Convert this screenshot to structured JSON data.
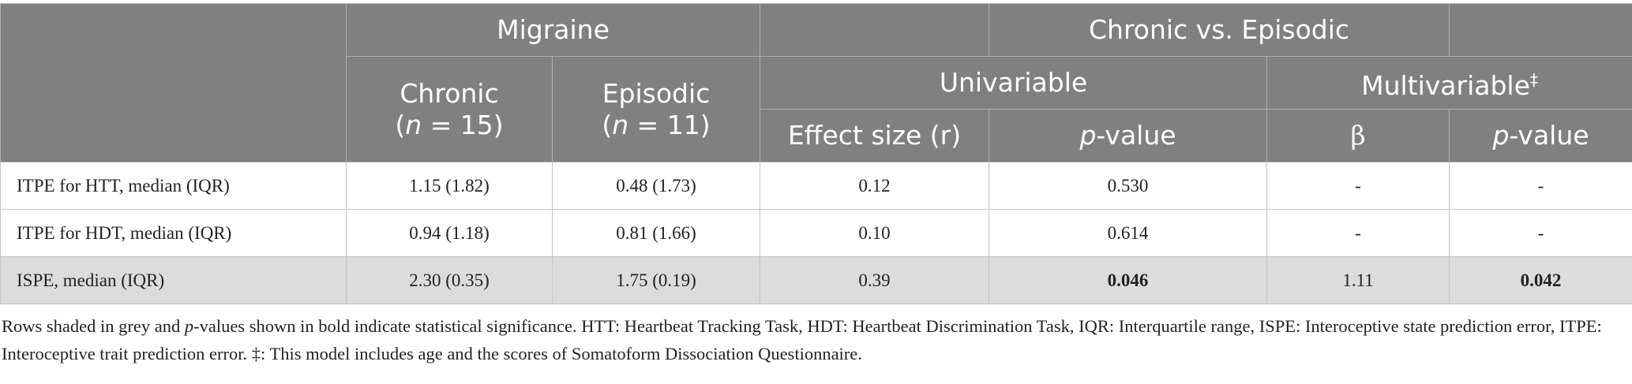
{
  "table": {
    "header": {
      "migraine": "Migraine",
      "comparison": "Chronic vs. Episodic",
      "chronic": [
        "Chronic",
        "(",
        "n",
        " = 15)"
      ],
      "episodic": [
        "Episodic",
        "(",
        "n",
        " = 11)"
      ],
      "univariable": "Univariable",
      "multivariable": "Multivariable",
      "multivariable_mark": "‡",
      "effect_size": "Effect size (r)",
      "p_value": [
        "p",
        "-value"
      ],
      "beta": "β",
      "p_value_multi": [
        "p",
        "-value"
      ]
    },
    "rows": [
      {
        "cells": [
          "ITPE for HTT, median (IQR)",
          "1.15 (1.82)",
          "0.48 (1.73)",
          "0.12",
          "0.530",
          "-",
          "-"
        ],
        "shaded": false,
        "bold_columns": []
      },
      {
        "cells": [
          "ITPE for HDT, median (IQR)",
          "0.94 (1.18)",
          "0.81 (1.66)",
          "0.10",
          "0.614",
          "-",
          "-"
        ],
        "shaded": false,
        "bold_columns": []
      },
      {
        "cells": [
          "ISPE, median (IQR)",
          "2.30 (0.35)",
          "1.75 (0.19)",
          "0.39",
          "0.046",
          "1.11",
          "0.042"
        ],
        "shaded": true,
        "bold_columns": [
          4,
          6
        ]
      }
    ],
    "footnote": [
      "Rows shaded in grey and ",
      "p",
      "-values shown in bold indicate statistical significance. HTT: Heartbeat Tracking Task, HDT: Heartbeat Discrimination Task, IQR: Interquartile range, ISPE: Interoceptive state prediction error, ITPE: Interoceptive trait prediction error. ‡: This model includes age and the scores of Somatoform Dissociation Questionnaire."
    ]
  }
}
